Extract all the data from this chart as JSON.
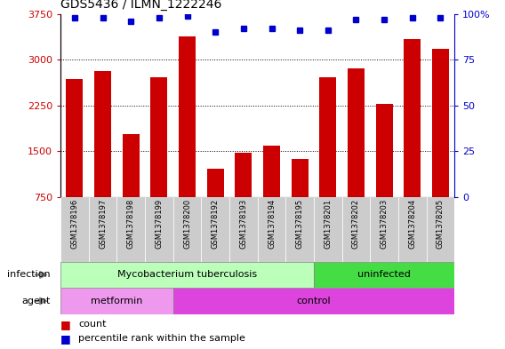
{
  "title": "GDS5436 / ILMN_1222246",
  "samples": [
    "GSM1378196",
    "GSM1378197",
    "GSM1378198",
    "GSM1378199",
    "GSM1378200",
    "GSM1378192",
    "GSM1378193",
    "GSM1378194",
    "GSM1378195",
    "GSM1378201",
    "GSM1378202",
    "GSM1378203",
    "GSM1378204",
    "GSM1378205"
  ],
  "bar_values": [
    2680,
    2820,
    1780,
    2720,
    3380,
    1220,
    1480,
    1600,
    1380,
    2720,
    2860,
    2280,
    3340,
    3180
  ],
  "percentile_values": [
    98,
    98,
    96,
    98,
    99,
    90,
    92,
    92,
    91,
    91,
    97,
    97,
    98,
    98
  ],
  "bar_color": "#cc0000",
  "dot_color": "#0000cc",
  "ymin": 750,
  "ymax": 3750,
  "yticks_left": [
    750,
    1500,
    2250,
    3000,
    3750
  ],
  "yticks_right": [
    0,
    25,
    50,
    75,
    100
  ],
  "yright_labels": [
    "0",
    "25",
    "50",
    "75",
    "100%"
  ],
  "grid_lines": [
    1500,
    2250,
    3000
  ],
  "infection_groups": [
    {
      "label": "Mycobacterium tuberculosis",
      "start": 0,
      "end": 9,
      "color": "#bbffbb"
    },
    {
      "label": "uninfected",
      "start": 9,
      "end": 14,
      "color": "#44dd44"
    }
  ],
  "agent_groups": [
    {
      "label": "metformin",
      "start": 0,
      "end": 4,
      "color": "#ee99ee"
    },
    {
      "label": "control",
      "start": 4,
      "end": 14,
      "color": "#dd44dd"
    }
  ],
  "tick_area_color": "#cccccc",
  "legend_count_color": "#cc0000",
  "legend_dot_color": "#0000cc"
}
